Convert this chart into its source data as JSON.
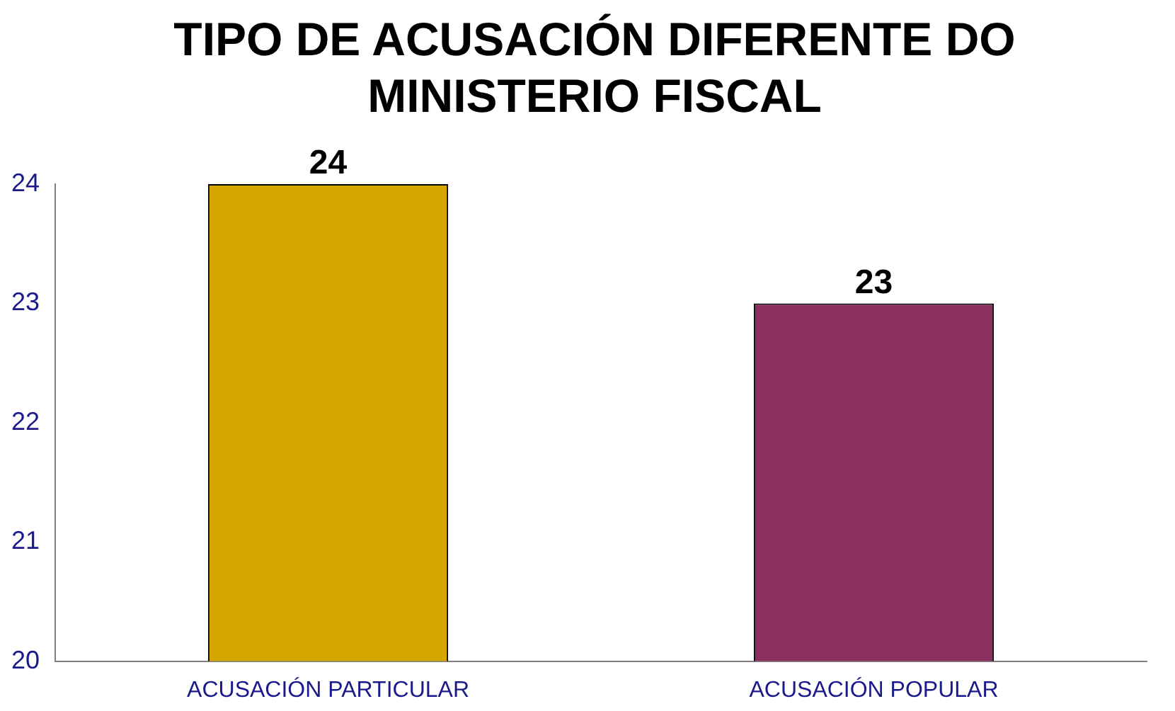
{
  "chart_data": {
    "type": "bar",
    "title": "TIPO DE ACUSACIÓN DIFERENTE DO MINISTERIO FISCAL",
    "categories": [
      "ACUSACIÓN PARTICULAR",
      "ACUSACIÓN POPULAR"
    ],
    "values": [
      24,
      23
    ],
    "colors": [
      "#d4a600",
      "#8a2f60"
    ],
    "ylim": [
      20,
      24
    ],
    "yticks": [
      20,
      21,
      22,
      23,
      24
    ],
    "grid": false,
    "legend": false,
    "data_labels": true
  }
}
